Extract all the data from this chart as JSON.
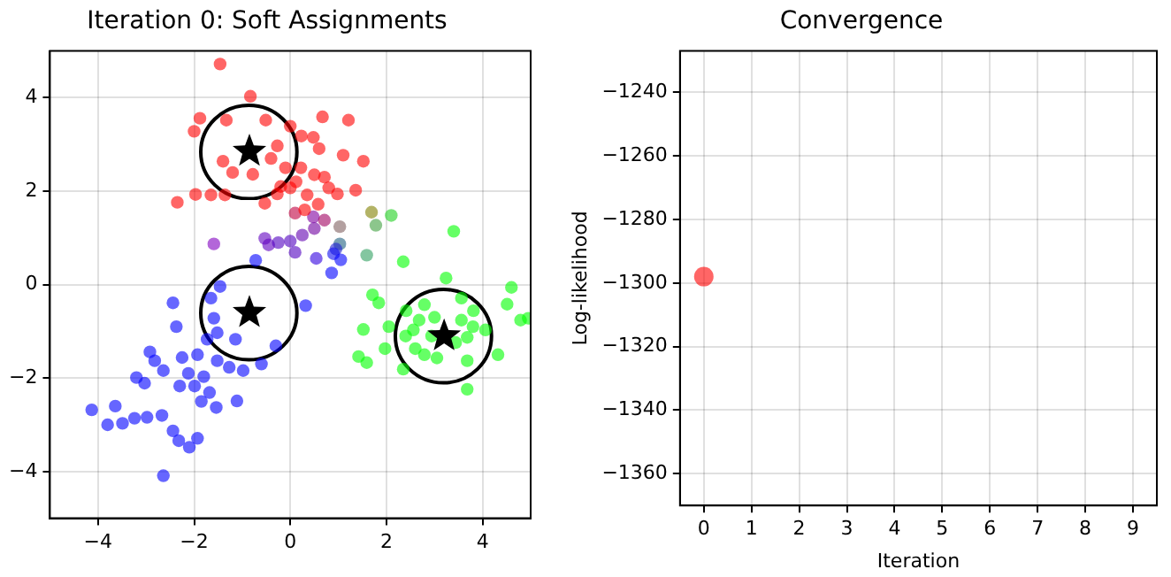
{
  "chart_data": [
    {
      "type": "scatter",
      "title": "Iteration 0: Soft Assignments",
      "xlim": [
        -5,
        5
      ],
      "ylim": [
        -5,
        5
      ],
      "xticks": [
        -4,
        -2,
        0,
        2,
        4
      ],
      "yticks": [
        -4,
        -2,
        0,
        2,
        4
      ],
      "grid": true,
      "marker": "circle",
      "series": [
        {
          "color": "#ff0000",
          "x": [
            -1.46,
            -0.83,
            -1.88,
            -2.0,
            -1.33,
            -0.51,
            0.0,
            0.67,
            1.21,
            1.52,
            -1.4,
            -1.2,
            -1.97,
            -1.65,
            -1.36,
            -2.35,
            -0.78,
            -0.27,
            0.23,
            0.6,
            1.1,
            1.36,
            0.98,
            -0.27,
            -0.53,
            0.5,
            0.22,
            0.0,
            0.71,
            0.35,
            0.58,
            0.8,
            -0.1,
            -0.4,
            0.48,
            0.12,
            0.3,
            -0.2
          ],
          "values": [
            4.72,
            4.03,
            3.56,
            3.28,
            3.52,
            3.52,
            3.39,
            3.59,
            3.52,
            2.64,
            2.64,
            2.4,
            1.93,
            1.92,
            1.92,
            1.76,
            2.36,
            2.97,
            3.18,
            2.91,
            2.77,
            2.02,
            1.94,
            1.94,
            1.74,
            2.35,
            2.5,
            2.07,
            2.3,
            1.92,
            1.72,
            2.07,
            2.5,
            2.7,
            3.15,
            2.2,
            1.6,
            2.1
          ]
        },
        {
          "color": "#0000ff",
          "x": [
            -1.46,
            -2.44,
            -1.65,
            -2.37,
            -1.59,
            -1.14,
            -0.3,
            -0.6,
            0.32,
            -2.92,
            -3.2,
            -2.82,
            -2.25,
            -1.93,
            -1.52,
            -1.27,
            -2.12,
            -1.8,
            -1.99,
            -2.3,
            -1.68,
            -2.64,
            -3.03,
            -0.98,
            -1.11,
            -1.54,
            -4.13,
            -3.64,
            -3.8,
            -3.49,
            -3.24,
            -2.98,
            -2.67,
            -2.44,
            -2.32,
            -2.1,
            -1.93,
            -2.64,
            -1.85,
            -1.73,
            -1.52,
            -0.72,
            0.86,
            1.05
          ],
          "values": [
            -0.04,
            -0.39,
            -0.29,
            -0.9,
            -0.72,
            -1.17,
            -1.31,
            -1.7,
            -0.45,
            -1.44,
            -1.99,
            -1.63,
            -1.56,
            -1.5,
            -1.63,
            -1.77,
            -1.9,
            -1.97,
            -2.17,
            -2.17,
            -2.31,
            -1.84,
            -2.11,
            -1.84,
            -2.49,
            -2.63,
            -2.68,
            -2.6,
            -3.0,
            -2.97,
            -2.86,
            -2.84,
            -2.8,
            -3.13,
            -3.34,
            -3.48,
            -3.29,
            -4.09,
            -2.5,
            -1.17,
            -1.03,
            0.52,
            0.25,
            0.53
          ]
        },
        {
          "color": "#00ff00",
          "x": [
            3.4,
            2.35,
            1.71,
            1.84,
            1.52,
            1.97,
            1.42,
            1.59,
            2.35,
            2.05,
            2.41,
            2.79,
            3.24,
            3.56,
            3.81,
            2.79,
            3.05,
            3.68,
            4.06,
            4.32,
            3.68,
            4.6,
            4.51,
            4.79,
            4.95,
            2.56,
            2.94,
            3.44,
            3.56,
            2.68,
            3.0,
            3.68,
            3.8,
            2.4,
            2.6
          ],
          "values": [
            1.14,
            0.49,
            -0.22,
            -0.39,
            -0.96,
            -1.37,
            -1.54,
            -1.67,
            -1.81,
            -0.9,
            -0.56,
            -0.43,
            0.14,
            -0.29,
            -0.56,
            -1.5,
            -1.57,
            -1.63,
            -0.97,
            -1.5,
            -2.24,
            -0.06,
            -0.42,
            -0.76,
            -0.72,
            -0.97,
            -1.1,
            -1.24,
            -0.76,
            -0.76,
            -0.7,
            -1.13,
            -0.9,
            -1.1,
            -1.37
          ]
        },
        {
          "colors": [
            "#c00040",
            "#8000a0",
            "#a00060",
            "#806060",
            "#808000",
            "#20d020",
            "#40a040",
            "#206080",
            "#30a060",
            "#8000c0",
            "#6000c0",
            "#6000c0",
            "#5000c0",
            "#5000c0",
            "#6000b0",
            "#7000a0",
            "#5000c0",
            "#3000e0",
            "#2020d0",
            "#1010f0"
          ],
          "x": [
            0.1,
            0.48,
            0.71,
            1.03,
            1.69,
            2.1,
            1.78,
            1.03,
            1.59,
            -1.59,
            -0.53,
            -0.45,
            -0.25,
            0.0,
            0.25,
            0.5,
            0.1,
            0.54,
            0.95,
            0.9
          ],
          "values": [
            1.53,
            1.45,
            1.38,
            1.24,
            1.55,
            1.48,
            1.27,
            0.87,
            0.63,
            0.87,
            0.99,
            0.85,
            0.9,
            0.93,
            1.06,
            1.2,
            0.69,
            0.56,
            0.76,
            0.66
          ]
        },
        {
          "marker": "star",
          "color": "#000000",
          "x": [
            -0.85,
            -0.85,
            3.2
          ],
          "values": [
            2.85,
            -0.6,
            -1.1
          ]
        }
      ]
    },
    {
      "type": "scatter",
      "title": "Convergence",
      "xlabel": "Iteration",
      "ylabel": "Log-likelihood",
      "xlim": [
        -0.5,
        9.5
      ],
      "ylim": [
        -1370,
        -1227
      ],
      "xticks": [
        0,
        1,
        2,
        3,
        4,
        5,
        6,
        7,
        8,
        9
      ],
      "yticks": [
        -1360,
        -1340,
        -1320,
        -1300,
        -1280,
        -1260,
        -1240
      ],
      "grid": true,
      "marker": "circle",
      "series": [
        {
          "color": "#ff0000",
          "x": [
            0
          ],
          "values": [
            -1298
          ]
        }
      ]
    }
  ]
}
